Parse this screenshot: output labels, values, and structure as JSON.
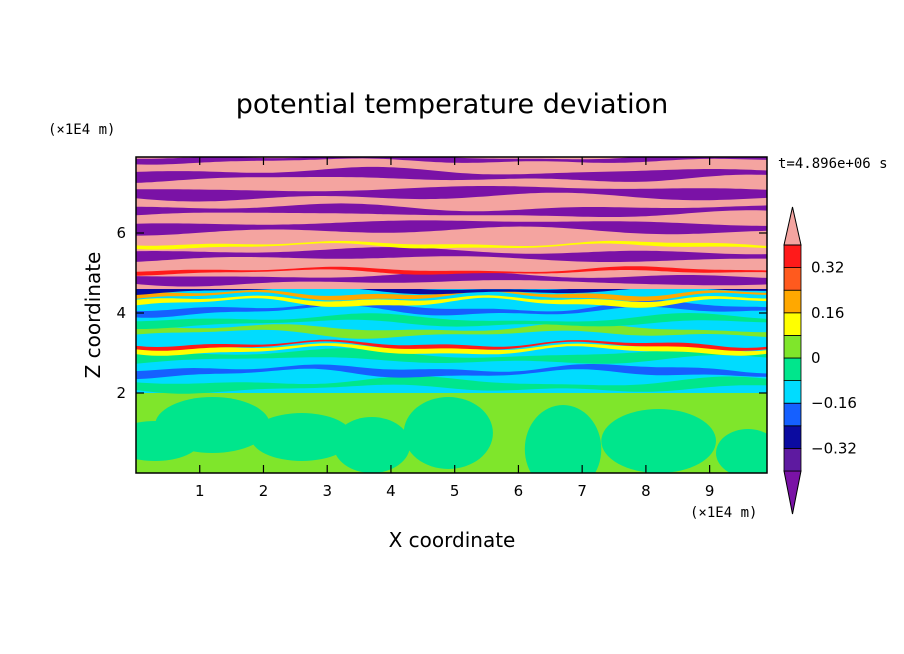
{
  "chart_data": {
    "type": "heatmap",
    "title": "potential temperature deviation",
    "xlabel": "X coordinate",
    "ylabel": "Z coordinate",
    "x_unit": "(×1E4 m)",
    "y_unit": "(×1E4 m)",
    "time_label": "t=4.896e+06 s",
    "xlim": [
      0,
      9.9
    ],
    "ylim": [
      0,
      7.9
    ],
    "x_ticks": [
      "1",
      "2",
      "3",
      "4",
      "5",
      "6",
      "7",
      "8",
      "9"
    ],
    "y_ticks": [
      "2",
      "4",
      "6"
    ],
    "colorbar": {
      "levels": [
        -0.48,
        -0.4,
        -0.32,
        -0.24,
        -0.16,
        -0.08,
        0,
        0.08,
        0.16,
        0.24,
        0.32,
        0.4,
        0.48
      ],
      "tick_labels": [
        "0.32",
        "0.16",
        "0",
        "−0.16",
        "−0.32"
      ],
      "tick_values": [
        0.32,
        0.16,
        0,
        -0.16,
        -0.32
      ],
      "colors": [
        "#7a12a6",
        "#5e1aa0",
        "#0b0ba0",
        "#1560ff",
        "#00dcff",
        "#00e68c",
        "#7fe62b",
        "#ffff00",
        "#ffa800",
        "#ff5a1e",
        "#ff1a1a",
        "#f4a4a0"
      ],
      "extend": "both"
    },
    "regions": [
      {
        "z_range": [
          0,
          2
        ],
        "description_values": [
          0.0,
          -0.08
        ]
      },
      {
        "z_range": [
          2,
          4.5
        ],
        "description_values": [
          -0.16,
          0.16
        ]
      },
      {
        "z_range": [
          4.5,
          7.9
        ],
        "description_values": [
          -0.48,
          0.48
        ]
      }
    ]
  }
}
